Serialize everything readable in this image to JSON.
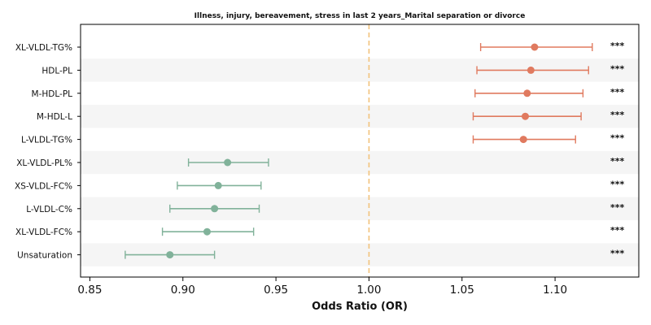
{
  "chart_data": {
    "type": "forest",
    "title": "Illness, injury, bereavement, stress in last 2 years_Marital separation or divorce",
    "xlabel": "Odds Ratio (OR)",
    "xlim": [
      0.845,
      1.145
    ],
    "xticks": [
      "0.85",
      "0.90",
      "0.95",
      "1.00",
      "1.05",
      "1.10"
    ],
    "xtick_values": [
      0.85,
      0.9,
      0.95,
      1.0,
      1.05,
      1.1
    ],
    "reference_line": 1.0,
    "colors": {
      "positive": "#e07a5f",
      "negative": "#81b29a",
      "reference": "#f2c27a",
      "band": "#f5f5f5"
    },
    "rows": [
      {
        "label": "XL-VLDL-TG%",
        "or": 1.089,
        "lower": 1.06,
        "upper": 1.12,
        "sig": "***"
      },
      {
        "label": "HDL-PL",
        "or": 1.087,
        "lower": 1.058,
        "upper": 1.118,
        "sig": "***"
      },
      {
        "label": "M-HDL-PL",
        "or": 1.085,
        "lower": 1.057,
        "upper": 1.115,
        "sig": "***"
      },
      {
        "label": "M-HDL-L",
        "or": 1.084,
        "lower": 1.056,
        "upper": 1.114,
        "sig": "***"
      },
      {
        "label": "L-VLDL-TG%",
        "or": 1.083,
        "lower": 1.056,
        "upper": 1.111,
        "sig": "***"
      },
      {
        "label": "XL-VLDL-PL%",
        "or": 0.924,
        "lower": 0.903,
        "upper": 0.946,
        "sig": "***"
      },
      {
        "label": "XS-VLDL-FC%",
        "or": 0.919,
        "lower": 0.897,
        "upper": 0.942,
        "sig": "***"
      },
      {
        "label": "L-VLDL-C%",
        "or": 0.917,
        "lower": 0.893,
        "upper": 0.941,
        "sig": "***"
      },
      {
        "label": "XL-VLDL-FC%",
        "or": 0.913,
        "lower": 0.889,
        "upper": 0.938,
        "sig": "***"
      },
      {
        "label": "Unsaturation",
        "or": 0.893,
        "lower": 0.869,
        "upper": 0.917,
        "sig": "***"
      }
    ]
  }
}
